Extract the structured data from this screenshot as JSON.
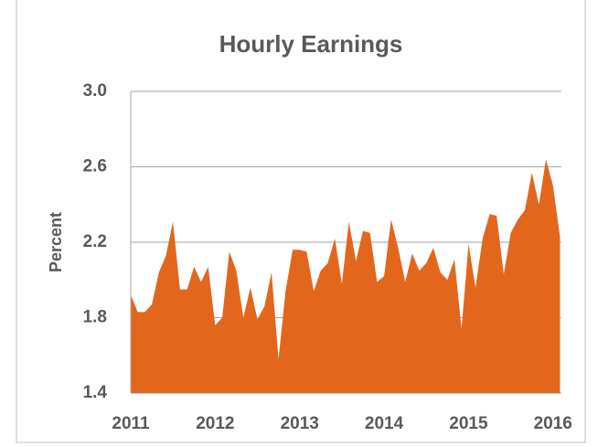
{
  "chart_data": {
    "type": "area",
    "title": "Hourly Earnings",
    "y_label": "Percent",
    "color": "#e2671c",
    "x": [
      2011,
      2011.083,
      2011.167,
      2011.25,
      2011.333,
      2011.417,
      2011.5,
      2011.583,
      2011.667,
      2011.75,
      2011.833,
      2011.917,
      2012,
      2012.083,
      2012.167,
      2012.25,
      2012.333,
      2012.417,
      2012.5,
      2012.583,
      2012.667,
      2012.75,
      2012.833,
      2012.917,
      2013,
      2013.083,
      2013.167,
      2013.25,
      2013.333,
      2013.417,
      2013.5,
      2013.583,
      2013.667,
      2013.75,
      2013.833,
      2013.917,
      2014,
      2014.083,
      2014.167,
      2014.25,
      2014.333,
      2014.417,
      2014.5,
      2014.583,
      2014.667,
      2014.75,
      2014.833,
      2014.917,
      2015,
      2015.083,
      2015.167,
      2015.25,
      2015.333,
      2015.417,
      2015.5,
      2015.583,
      2015.667,
      2015.75,
      2015.833,
      2015.917,
      2016,
      2016.083
    ],
    "values": [
      1.92,
      1.83,
      1.83,
      1.87,
      2.04,
      2.13,
      2.31,
      1.95,
      1.95,
      2.07,
      1.99,
      2.07,
      1.76,
      1.8,
      2.15,
      2.05,
      1.8,
      1.96,
      1.79,
      1.86,
      2.04,
      1.58,
      1.94,
      2.16,
      2.16,
      2.15,
      1.94,
      2.05,
      2.09,
      2.22,
      1.98,
      2.31,
      2.1,
      2.26,
      2.25,
      1.99,
      2.02,
      2.32,
      2.17,
      1.99,
      2.14,
      2.05,
      2.09,
      2.17,
      2.04,
      2.0,
      2.11,
      1.74,
      2.19,
      1.96,
      2.22,
      2.35,
      2.34,
      2.03,
      2.25,
      2.32,
      2.37,
      2.57,
      2.4,
      2.64,
      2.5,
      2.23
    ],
    "xlim": [
      2011,
      2016.1
    ],
    "xticks": [
      2011,
      2012,
      2013,
      2014,
      2015,
      2016
    ],
    "ylim": [
      1.4,
      3.0
    ],
    "yticks": [
      {
        "value": 1.4,
        "label": "1.4"
      },
      {
        "value": 1.8,
        "label": "1.8"
      },
      {
        "value": 2.2,
        "label": "2.2"
      },
      {
        "value": 2.6,
        "label": "2.6"
      },
      {
        "value": 3.0,
        "label": "3.0"
      }
    ],
    "grid": true
  }
}
